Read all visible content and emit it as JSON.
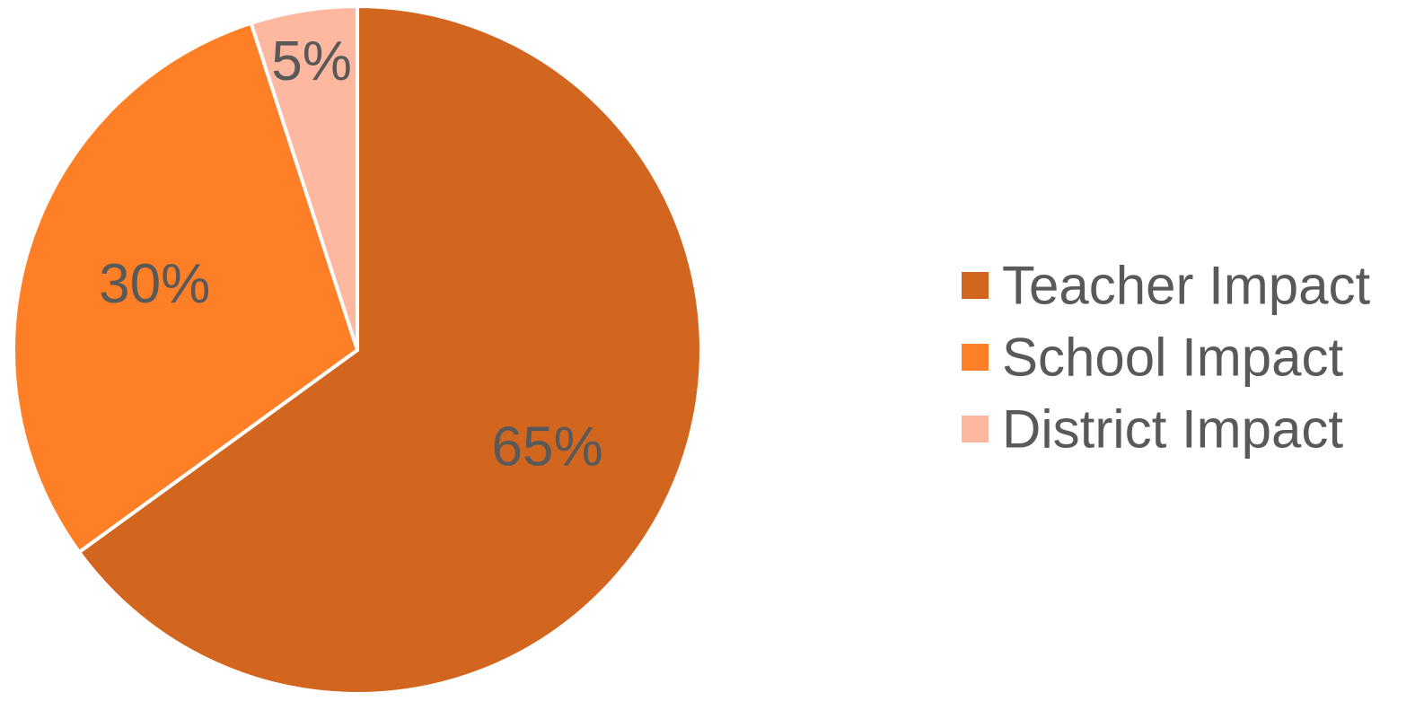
{
  "chart_data": {
    "type": "pie",
    "title": "",
    "categories": [
      "Teacher Impact",
      "School Impact",
      "District Impact"
    ],
    "values": [
      65,
      30,
      5
    ],
    "value_labels": [
      "65%",
      "30%",
      "5%"
    ],
    "colors": [
      "#D2661E",
      "#FF7F27",
      "#FFB8A0"
    ],
    "start_angle_deg": 0,
    "direction": "clockwise",
    "legend": {
      "position": "right",
      "items": [
        "Teacher Impact",
        "School Impact",
        "District Impact"
      ]
    }
  },
  "style": {
    "text_color": "#595959",
    "slice_border_color": "#FFFFFF",
    "background": "#FFFFFF"
  }
}
